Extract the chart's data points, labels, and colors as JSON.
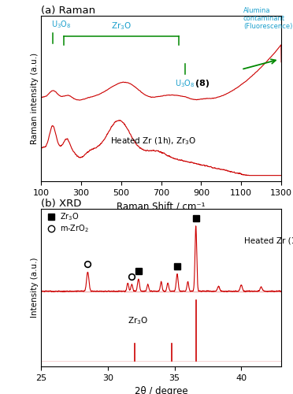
{
  "fig_width": 3.72,
  "fig_height": 5.0,
  "dpi": 100,
  "panel_a": {
    "title": "(a) Raman",
    "xlabel": "Raman Shift / cm⁻¹",
    "ylabel": "Raman intensity (a.u.)",
    "xlim": [
      100,
      1300
    ],
    "xticks": [
      100,
      300,
      500,
      700,
      900,
      1100,
      1300
    ]
  },
  "panel_b": {
    "title": "(b) XRD",
    "xlabel": "2θ / degree",
    "ylabel": "Intensity (a.u.)",
    "xlim": [
      25,
      43
    ],
    "xticks": [
      25,
      30,
      35,
      40
    ]
  },
  "line_color": "#cc0000",
  "cyan": "#1a9fcc",
  "green": "#008800"
}
